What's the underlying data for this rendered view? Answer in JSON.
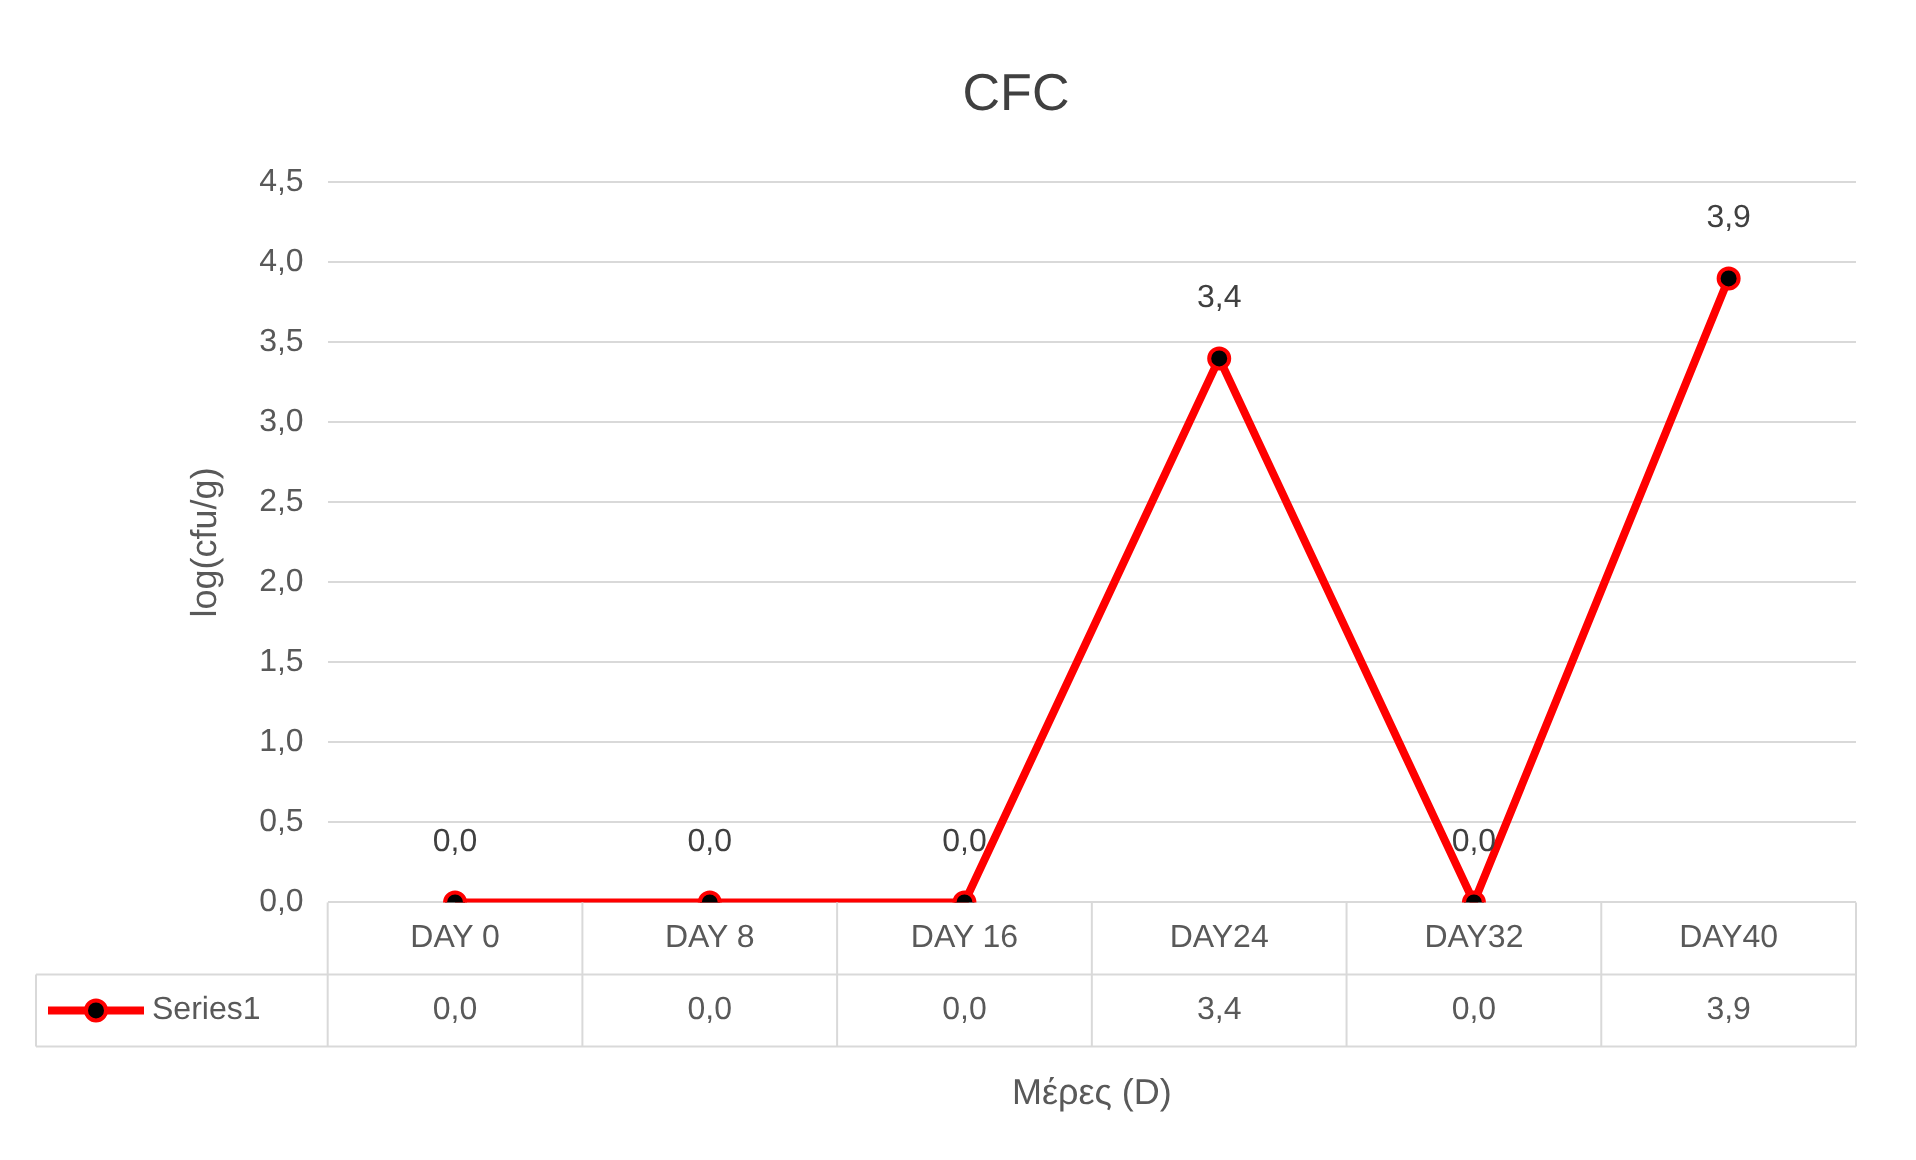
{
  "chart_data": {
    "type": "line",
    "title": "CFC",
    "xlabel": "Μέρες (D)",
    "ylabel": "log(cfu/g)",
    "categories": [
      "DAY 0",
      "DAY 8",
      "DAY 16",
      "DAY24",
      "DAY32",
      "DAY40"
    ],
    "series": [
      {
        "name": "Series1",
        "color": "#ff0000",
        "values": [
          0.0,
          0.0,
          0.0,
          3.4,
          0.0,
          3.9
        ],
        "value_labels": [
          "0,0",
          "0,0",
          "0,0",
          "3,4",
          "0,0",
          "3,9"
        ]
      }
    ],
    "ylim": [
      0,
      4.5
    ],
    "yticks": [
      {
        "value": 0,
        "label": "0,0"
      },
      {
        "value": 0.5,
        "label": "0,5"
      },
      {
        "value": 1,
        "label": "1,0"
      },
      {
        "value": 1.5,
        "label": "1,5"
      },
      {
        "value": 2,
        "label": "2,0"
      },
      {
        "value": 2.5,
        "label": "2,5"
      },
      {
        "value": 3,
        "label": "3,0"
      },
      {
        "value": 3.5,
        "label": "3,5"
      },
      {
        "value": 4,
        "label": "4,0"
      },
      {
        "value": 4.5,
        "label": "4,5"
      }
    ],
    "grid": "y",
    "marker": "circle",
    "line_style": "solid"
  }
}
